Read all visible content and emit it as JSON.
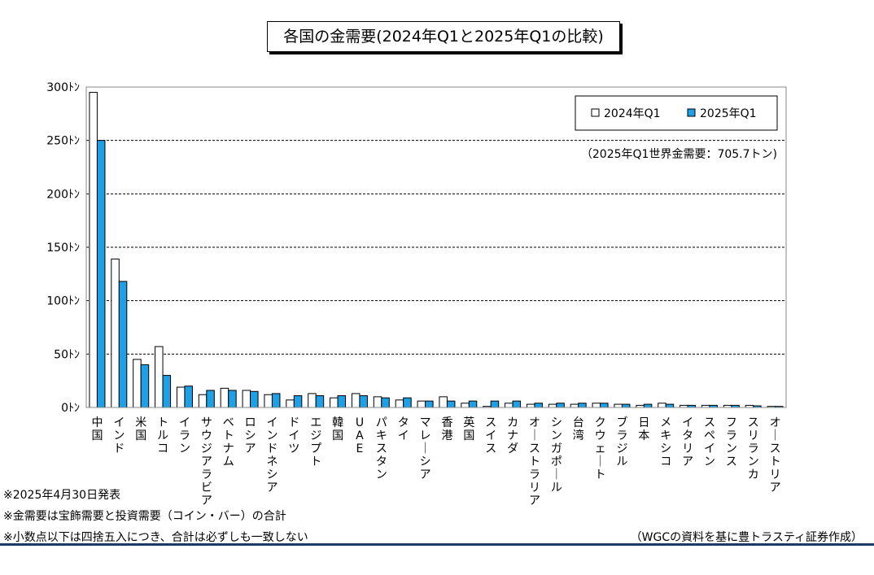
{
  "chart_data": {
    "type": "bar",
    "title": "各国の金需要(2024年Q1と2025年Q1の比較)",
    "annotation": "（2025年Q1世界金需要：705.7トン)",
    "ylim": [
      0,
      300
    ],
    "yticks": [
      "0ﾄﾝ",
      "50ﾄﾝ",
      "100ﾄﾝ",
      "150ﾄﾝ",
      "200ﾄﾝ",
      "250ﾄﾝ",
      "300ﾄﾝ"
    ],
    "grid": true,
    "legend_position": "top-right",
    "categories": [
      "中国",
      "インド",
      "米国",
      "トルコ",
      "イラン",
      "サウジアラビア",
      "ベトナム",
      "ロシア",
      "インドネシア",
      "ドイツ",
      "エジプト",
      "韓国",
      "UAE",
      "パキスタン",
      "タイ",
      "マレーシア",
      "香港",
      "英国",
      "スイス",
      "カナダ",
      "オーストラリア",
      "シンガポール",
      "台湾",
      "クウェート",
      "ブラジル",
      "日本",
      "メキシコ",
      "イタリア",
      "スペイン",
      "フランス",
      "スリランカ",
      "オーストリア"
    ],
    "series": [
      {
        "name": "2024年Q1",
        "color": "#ffffff",
        "values": [
          295,
          139,
          45,
          57,
          19,
          12,
          18,
          16,
          12,
          7,
          13,
          9,
          13,
          10,
          7,
          6,
          10,
          4,
          1,
          4,
          3,
          3,
          3,
          4,
          3,
          2,
          4,
          2,
          2,
          2,
          2,
          1
        ]
      },
      {
        "name": "2025年Q1",
        "color": "#1ea0e6",
        "values": [
          250,
          118,
          40,
          30,
          20,
          16,
          16,
          15,
          13,
          11,
          11,
          11,
          11,
          9,
          9,
          6,
          6,
          6,
          6,
          6,
          4,
          4,
          4,
          4,
          3,
          3,
          3,
          2,
          2,
          2,
          1.5,
          1
        ]
      }
    ]
  },
  "footnotes": [
    "※2025年4月30日発表",
    "※金需要は宝飾需要と投資需要（コイン・バー）の合計",
    "※小数点以下は四捨五入につき、合計は必ずしも一致しない"
  ],
  "source": "（WGCの資料を基に豊トラスティ証券作成）",
  "colors": {
    "accent": "#1ea0e6",
    "rule": "#1f3864"
  }
}
